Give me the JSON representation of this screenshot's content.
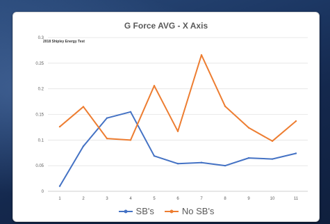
{
  "chart_data": {
    "type": "line",
    "title": "G Force AVG - X Axis",
    "subtitle": "2018 Shipley Energy Test",
    "categories": [
      "1",
      "2",
      "3",
      "4",
      "5",
      "6",
      "7",
      "8",
      "9",
      "10",
      "11"
    ],
    "ylim": [
      0,
      0.3
    ],
    "yticks": [
      "0",
      "0.05",
      "0.1",
      "0.15",
      "0.2",
      "0.25",
      "0.3"
    ],
    "grid": true,
    "legend_position": "bottom",
    "series": [
      {
        "name": "SB's",
        "color": "#4472C4",
        "values": [
          0.01,
          0.088,
          0.143,
          0.155,
          0.069,
          0.054,
          0.056,
          0.05,
          0.065,
          0.063,
          0.074
        ]
      },
      {
        "name": "No SB's",
        "color": "#ED7D31",
        "values": [
          0.126,
          0.165,
          0.103,
          0.1,
          0.206,
          0.117,
          0.266,
          0.166,
          0.124,
          0.098,
          0.137
        ]
      }
    ]
  }
}
